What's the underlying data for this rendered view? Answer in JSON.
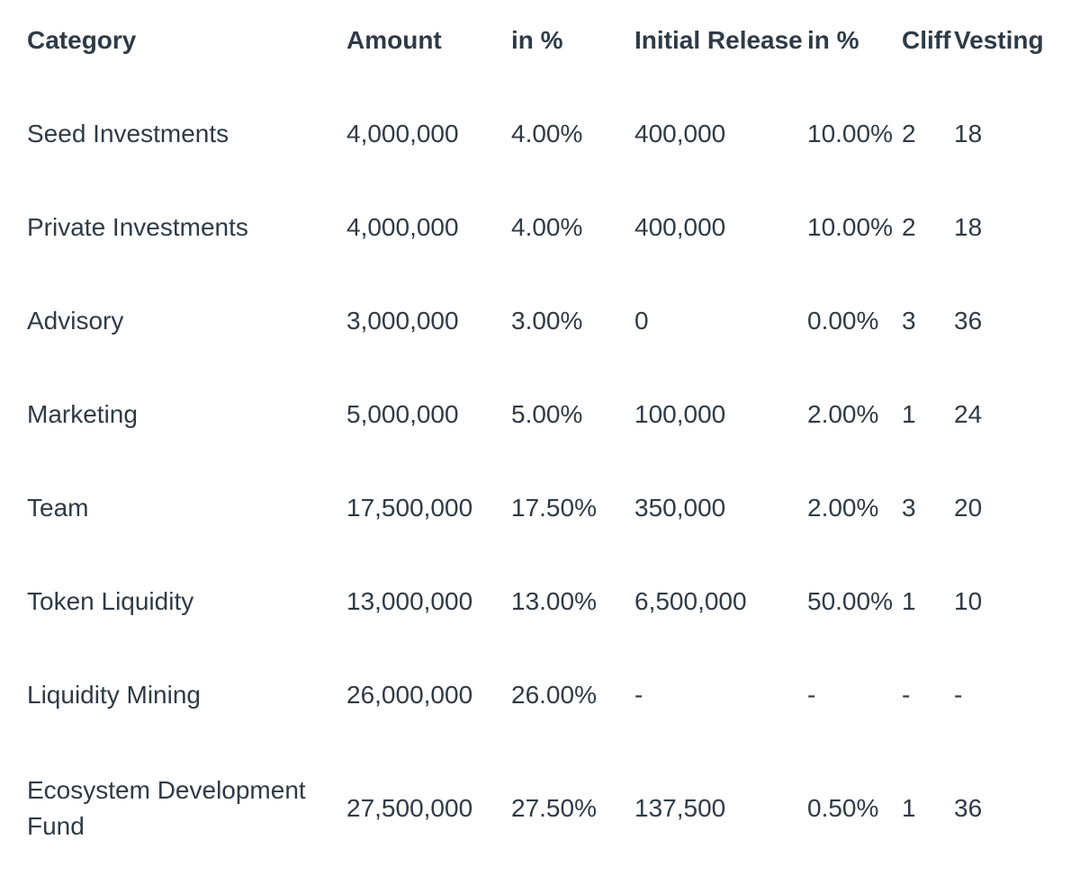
{
  "colors": {
    "background": "#ffffff",
    "text": "#2e3b47"
  },
  "table": {
    "columns": [
      "Category",
      "Amount",
      "in %",
      "Initial Release",
      "in %",
      "Cliff",
      "Vesting"
    ],
    "rows": [
      {
        "category": "Seed Investments",
        "amount": "4,000,000",
        "amount_pct": "4.00%",
        "initial_release": "400,000",
        "initial_release_pct": "10.00%",
        "cliff": "2",
        "vesting": "18"
      },
      {
        "category": "Private Investments",
        "amount": "4,000,000",
        "amount_pct": "4.00%",
        "initial_release": "400,000",
        "initial_release_pct": "10.00%",
        "cliff": "2",
        "vesting": "18"
      },
      {
        "category": "Advisory",
        "amount": "3,000,000",
        "amount_pct": "3.00%",
        "initial_release": "0",
        "initial_release_pct": "0.00%",
        "cliff": "3",
        "vesting": "36"
      },
      {
        "category": "Marketing",
        "amount": "5,000,000",
        "amount_pct": "5.00%",
        "initial_release": "100,000",
        "initial_release_pct": "2.00%",
        "cliff": "1",
        "vesting": "24"
      },
      {
        "category": "Team",
        "amount": "17,500,000",
        "amount_pct": "17.50%",
        "initial_release": "350,000",
        "initial_release_pct": "2.00%",
        "cliff": "3",
        "vesting": "20"
      },
      {
        "category": "Token Liquidity",
        "amount": "13,000,000",
        "amount_pct": "13.00%",
        "initial_release": "6,500,000",
        "initial_release_pct": "50.00%",
        "cliff": "1",
        "vesting": "10"
      },
      {
        "category": "Liquidity Mining",
        "amount": "26,000,000",
        "amount_pct": "26.00%",
        "initial_release": "-",
        "initial_release_pct": "-",
        "cliff": "-",
        "vesting": "-"
      },
      {
        "category": "Ecosystem Development Fund",
        "amount": "27,500,000",
        "amount_pct": "27.50%",
        "initial_release": "137,500",
        "initial_release_pct": "0.50%",
        "cliff": "1",
        "vesting": "36"
      }
    ]
  },
  "chart_data": {
    "type": "table",
    "columns": [
      "Category",
      "Amount",
      "in %",
      "Initial Release",
      "in %",
      "Cliff",
      "Vesting"
    ],
    "rows": [
      [
        "Seed Investments",
        "4,000,000",
        "4.00%",
        "400,000",
        "10.00%",
        "2",
        "18"
      ],
      [
        "Private Investments",
        "4,000,000",
        "4.00%",
        "400,000",
        "10.00%",
        "2",
        "18"
      ],
      [
        "Advisory",
        "3,000,000",
        "3.00%",
        "0",
        "0.00%",
        "3",
        "36"
      ],
      [
        "Marketing",
        "5,000,000",
        "5.00%",
        "100,000",
        "2.00%",
        "1",
        "24"
      ],
      [
        "Team",
        "17,500,000",
        "17.50%",
        "350,000",
        "2.00%",
        "3",
        "20"
      ],
      [
        "Token Liquidity",
        "13,000,000",
        "13.00%",
        "6,500,000",
        "50.00%",
        "1",
        "10"
      ],
      [
        "Liquidity Mining",
        "26,000,000",
        "26.00%",
        "-",
        "-",
        "-",
        "-"
      ],
      [
        "Ecosystem Development Fund",
        "27,500,000",
        "27.50%",
        "137,500",
        "0.50%",
        "1",
        "36"
      ]
    ]
  }
}
